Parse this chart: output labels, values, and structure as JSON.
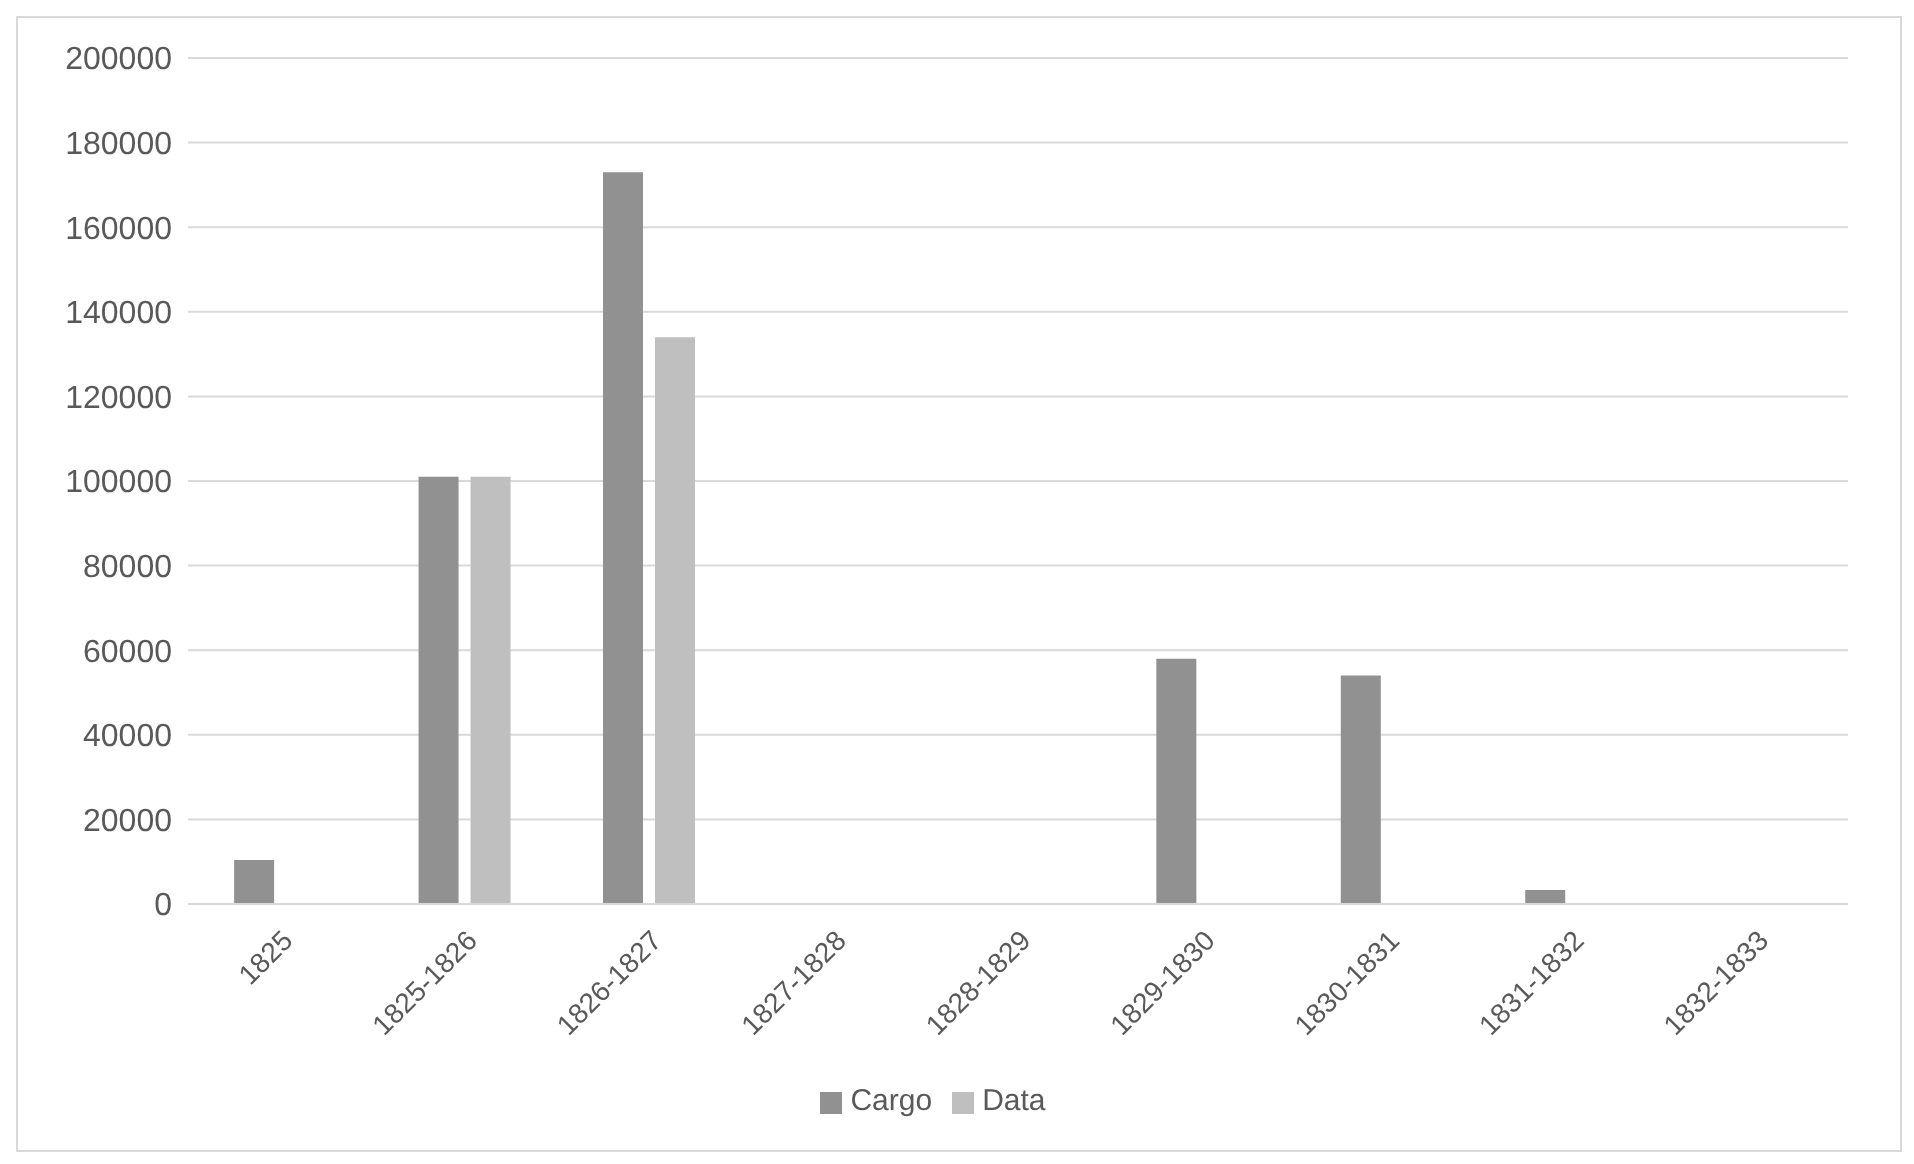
{
  "chart_data": {
    "type": "bar",
    "categories": [
      "1825",
      "1825-1826",
      "1826-1827",
      "1827-1828",
      "1828-1829",
      "1829-1830",
      "1830-1831",
      "1831-1832",
      "1832-1833"
    ],
    "series": [
      {
        "name": "Cargo",
        "color": "#919191",
        "values": [
          10400,
          101000,
          173000,
          0,
          0,
          58000,
          54000,
          3300,
          0
        ]
      },
      {
        "name": "Data",
        "color": "#bfbfbf",
        "values": [
          0,
          101000,
          134000,
          0,
          0,
          0,
          0,
          0,
          0
        ]
      }
    ],
    "ylim": [
      0,
      200000
    ],
    "yticks": [
      0,
      20000,
      40000,
      60000,
      80000,
      100000,
      120000,
      140000,
      160000,
      180000,
      200000
    ],
    "grid": "y",
    "legend": "bottom"
  }
}
